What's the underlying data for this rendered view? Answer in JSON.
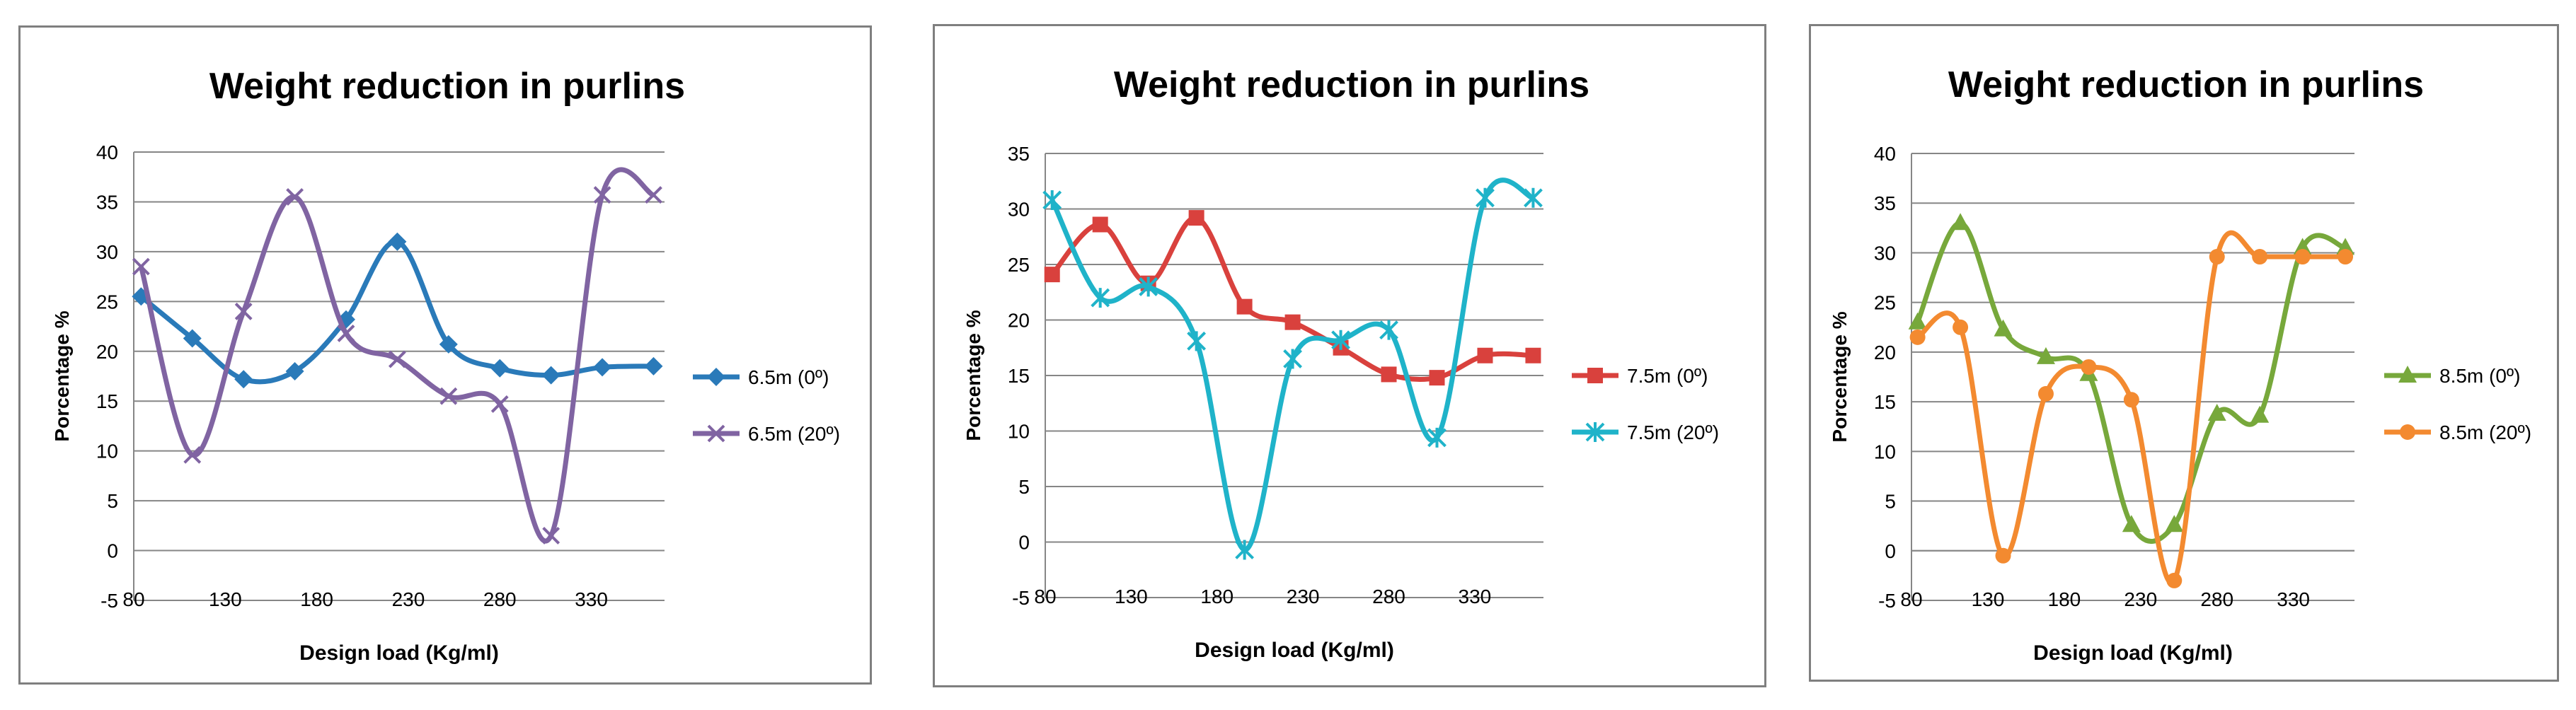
{
  "chart_data": [
    {
      "type": "line",
      "title": "Weight reduction in purlins",
      "xlabel": "Design load (Kg/ml)",
      "ylabel": "Porcentage %",
      "xlim": [
        80,
        370
      ],
      "ylim": [
        -5,
        40
      ],
      "x_ticks": [
        80,
        130,
        180,
        230,
        280,
        330
      ],
      "y_ticks": [
        -5,
        0,
        5,
        10,
        15,
        20,
        25,
        30,
        35,
        40
      ],
      "x_tick_labels": [
        "80",
        "130",
        "180",
        "230",
        "280",
        "330"
      ],
      "y_tick_labels": [
        "-5",
        "0",
        "5",
        "10",
        "15",
        "20",
        "25",
        "30",
        "35",
        "40"
      ],
      "grid": true,
      "legend_position": "right",
      "series": [
        {
          "name": "6.5m (0º)",
          "color": "#2a7ab9",
          "marker": "diamond",
          "x": [
            84,
            112,
            140,
            168,
            196,
            224,
            252,
            280,
            308,
            336,
            364
          ],
          "values": [
            25.5,
            21.3,
            17.2,
            18,
            23.2,
            31,
            20.7,
            18.3,
            17.6,
            18.4,
            18.5
          ]
        },
        {
          "name": "6.5m (20º)",
          "color": "#8064a2",
          "marker": "x",
          "x": [
            84,
            112,
            140,
            168,
            196,
            224,
            252,
            280,
            308,
            336,
            364
          ],
          "values": [
            28.5,
            9.6,
            24,
            35.5,
            21.8,
            19.2,
            15.5,
            14.7,
            1.5,
            35.7,
            35.7
          ]
        }
      ]
    },
    {
      "type": "line",
      "title": "Weight reduction in purlins",
      "xlabel": "Design load (Kg/ml)",
      "ylabel": "Porcentage %",
      "xlim": [
        80,
        370
      ],
      "ylim": [
        -5,
        35
      ],
      "x_ticks": [
        80,
        130,
        180,
        230,
        280,
        330
      ],
      "y_ticks": [
        -5,
        0,
        5,
        10,
        15,
        20,
        25,
        30,
        35
      ],
      "x_tick_labels": [
        "80",
        "130",
        "180",
        "230",
        "280",
        "330"
      ],
      "y_tick_labels": [
        "-5",
        "0",
        "5",
        "10",
        "15",
        "20",
        "25",
        "30",
        "35"
      ],
      "grid": true,
      "legend_position": "right",
      "series": [
        {
          "name": "7.5m (0º)",
          "color": "#d9413d",
          "marker": "square",
          "x": [
            84,
            112,
            140,
            168,
            196,
            224,
            252,
            280,
            308,
            336,
            364
          ],
          "values": [
            24.1,
            28.6,
            23.3,
            29.2,
            21.2,
            19.8,
            17.5,
            15.1,
            14.8,
            16.8,
            16.8
          ]
        },
        {
          "name": "7.5m (20º)",
          "color": "#1fb3c9",
          "marker": "asterisk",
          "x": [
            84,
            112,
            140,
            168,
            196,
            224,
            252,
            280,
            308,
            336,
            364
          ],
          "values": [
            30.8,
            22,
            23,
            18.1,
            -0.7,
            16.5,
            18.2,
            19.1,
            9.4,
            31,
            31
          ]
        }
      ]
    },
    {
      "type": "line",
      "title": "Weight reduction in purlins",
      "xlabel": "Design load (Kg/ml)",
      "ylabel": "Porcentage %",
      "xlim": [
        80,
        370
      ],
      "ylim": [
        -5,
        40
      ],
      "x_ticks": [
        80,
        130,
        180,
        230,
        280,
        330
      ],
      "y_ticks": [
        -5,
        0,
        5,
        10,
        15,
        20,
        25,
        30,
        35,
        40
      ],
      "x_tick_labels": [
        "80",
        "130",
        "180",
        "230",
        "280",
        "330"
      ],
      "y_tick_labels": [
        "-5",
        "0",
        "5",
        "10",
        "15",
        "20",
        "25",
        "30",
        "35",
        "40"
      ],
      "grid": true,
      "legend_position": "right",
      "series": [
        {
          "name": "8.5m (0º)",
          "color": "#77a83b",
          "marker": "triangle",
          "x": [
            84,
            112,
            140,
            168,
            196,
            224,
            252,
            280,
            308,
            336,
            364
          ],
          "values": [
            23,
            33,
            22.3,
            19.5,
            17.8,
            2.6,
            2.6,
            13.8,
            13.6,
            30.5,
            30.5
          ]
        },
        {
          "name": "8.5m (20º)",
          "color": "#f38a30",
          "marker": "circle",
          "x": [
            84,
            112,
            140,
            168,
            196,
            224,
            252,
            280,
            308,
            336,
            364
          ],
          "values": [
            21.5,
            22.5,
            -0.5,
            15.8,
            18.5,
            15.2,
            -3,
            29.6,
            29.6,
            29.6,
            29.6
          ]
        }
      ]
    }
  ]
}
